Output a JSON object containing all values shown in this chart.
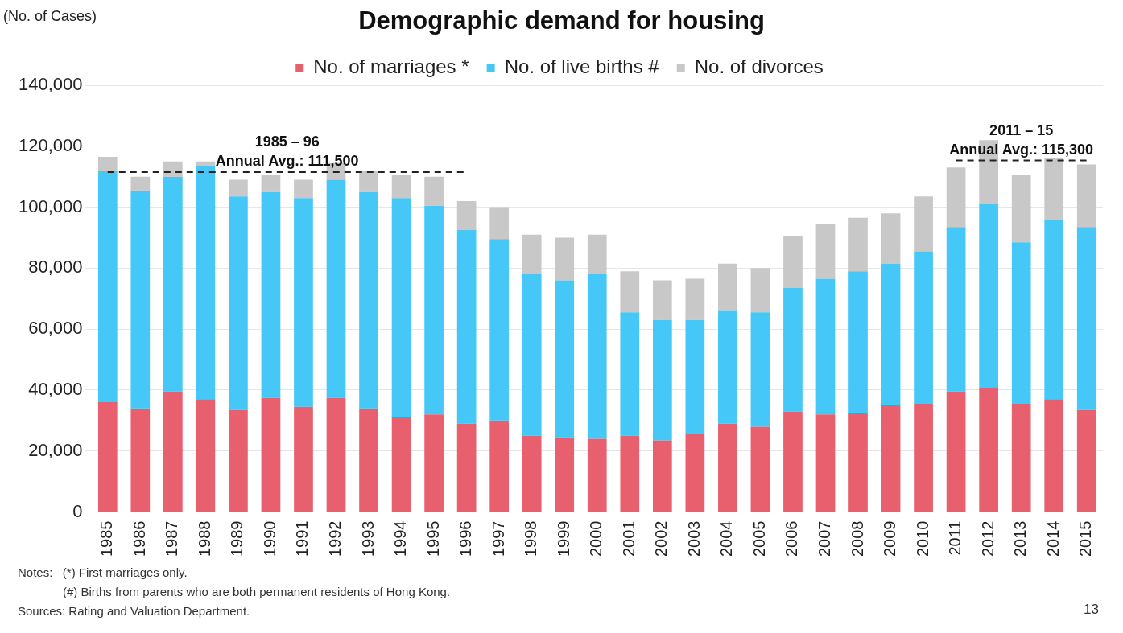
{
  "chart_data": {
    "type": "bar",
    "title": "Demographic demand for housing",
    "ylabel": "(No. of Cases)",
    "categories": [
      "1985",
      "1986",
      "1987",
      "1988",
      "1989",
      "1990",
      "1991",
      "1992",
      "1993",
      "1994",
      "1995",
      "1996",
      "1997",
      "1998",
      "1999",
      "2000",
      "2001",
      "2002",
      "2003",
      "2004",
      "2005",
      "2006",
      "2007",
      "2008",
      "2009",
      "2010",
      "2011",
      "2012",
      "2013",
      "2014",
      "2015"
    ],
    "stacked": true,
    "series": [
      {
        "name": "No. of marriages *",
        "color": "#e8606e",
        "values": [
          36000,
          34000,
          39500,
          37000,
          33500,
          37500,
          34500,
          37500,
          34000,
          31000,
          32000,
          29000,
          30000,
          25000,
          24500,
          24000,
          25000,
          23500,
          25500,
          29000,
          28000,
          33000,
          32000,
          32500,
          35000,
          35500,
          39500,
          40500,
          35500,
          37000,
          33500
        ]
      },
      {
        "name": "No. of live births #",
        "color": "#45c8f7",
        "values": [
          76000,
          71500,
          70500,
          76500,
          70000,
          67500,
          68500,
          71500,
          71000,
          72000,
          68500,
          63500,
          59500,
          53000,
          51500,
          54000,
          40500,
          39500,
          37500,
          37000,
          37500,
          40500,
          44500,
          46500,
          46500,
          50000,
          54000,
          60500,
          53000,
          59000,
          60000
        ]
      },
      {
        "name": "No. of divorces",
        "color": "#c8c8c8",
        "values": [
          4500,
          4500,
          5000,
          1500,
          5500,
          5500,
          6000,
          5500,
          7000,
          7500,
          9500,
          9500,
          10500,
          13000,
          14000,
          13000,
          13500,
          13000,
          13500,
          15500,
          14500,
          17000,
          18000,
          17500,
          16500,
          18000,
          19500,
          21000,
          22000,
          20000,
          20500
        ]
      },
      {
        "type": "line",
        "color": "#222222",
        "line_style": "dashed",
        "marker": "none",
        "values": [
          111500,
          111500,
          111500,
          111500,
          111500,
          111500,
          111500,
          111500,
          111500,
          111500,
          111500,
          111500,
          null,
          null,
          null,
          null,
          null,
          null,
          null,
          null,
          null,
          null,
          null,
          null,
          null,
          null,
          null,
          null,
          null,
          null,
          null
        ]
      },
      {
        "type": "line",
        "color": "#222222",
        "line_style": "dashed",
        "marker": "none",
        "values": [
          null,
          null,
          null,
          null,
          null,
          null,
          null,
          null,
          null,
          null,
          null,
          null,
          null,
          null,
          null,
          null,
          null,
          null,
          null,
          null,
          null,
          null,
          null,
          null,
          null,
          null,
          115300,
          115300,
          115300,
          115300,
          115300
        ]
      }
    ],
    "ylim": [
      0,
      140000
    ],
    "yticks": [
      {
        "value": 0,
        "label": "0"
      },
      {
        "value": 20000,
        "label": "20,000"
      },
      {
        "value": 40000,
        "label": "40,000"
      },
      {
        "value": 60000,
        "label": "60,000"
      },
      {
        "value": 80000,
        "label": "80,000"
      },
      {
        "value": 100000,
        "label": "100,000"
      },
      {
        "value": 120000,
        "label": "120,000"
      },
      {
        "value": 140000,
        "label": "140,000"
      }
    ],
    "grid": "y",
    "legend": "top",
    "annotations": [
      "1985 – 96\nAnnual Avg.: 111,500",
      "2011 – 15\nAnnual Avg.: 115,300",
      "Notes:   (*) First marriages only.",
      "(#) Births from parents who are both permanent residents of Hong Kong.",
      "Sources: Rating and Valuation Department.",
      "13"
    ]
  }
}
